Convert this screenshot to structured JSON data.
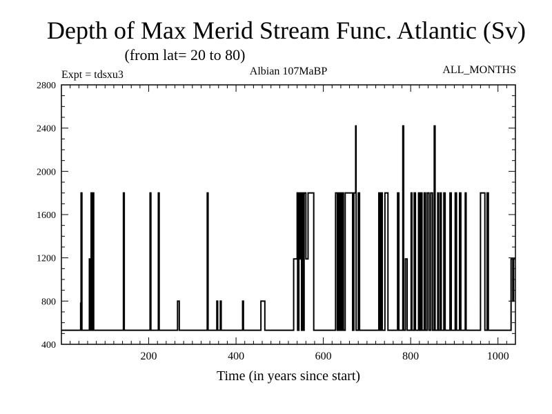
{
  "chart_data": {
    "type": "line",
    "title": "Depth of Max Merid Stream Func. Atlantic (Sv)",
    "subtitle": "(from lat= 20 to 80)",
    "annotations": {
      "left": "Expt = tdsxu3",
      "center": "Albian   107MaBP",
      "right": "ALL_MONTHS"
    },
    "xlabel": "Time (in years since start)",
    "ylabel": "",
    "xlim": [
      0,
      1040
    ],
    "ylim": [
      400,
      2800
    ],
    "xticks": [
      200,
      400,
      600,
      800,
      1000
    ],
    "yticks": [
      400,
      800,
      1200,
      1600,
      2000,
      2400,
      2800
    ],
    "grid": false,
    "series": [
      {
        "values": [
          [
            0,
            530
          ],
          [
            44,
            530
          ],
          [
            44,
            780
          ],
          [
            45,
            780
          ],
          [
            45,
            1800
          ],
          [
            47,
            1800
          ],
          [
            47,
            530
          ],
          [
            64,
            530
          ],
          [
            64,
            1190
          ],
          [
            66,
            1190
          ],
          [
            66,
            530
          ],
          [
            68,
            530
          ],
          [
            68,
            1800
          ],
          [
            70,
            1800
          ],
          [
            70,
            530
          ],
          [
            72,
            530
          ],
          [
            72,
            1800
          ],
          [
            74,
            1800
          ],
          [
            74,
            530
          ],
          [
            142,
            530
          ],
          [
            142,
            1800
          ],
          [
            144,
            1800
          ],
          [
            144,
            530
          ],
          [
            203,
            530
          ],
          [
            203,
            1800
          ],
          [
            205,
            1800
          ],
          [
            205,
            530
          ],
          [
            222,
            530
          ],
          [
            222,
            1800
          ],
          [
            224,
            1800
          ],
          [
            224,
            530
          ],
          [
            266,
            530
          ],
          [
            266,
            800
          ],
          [
            270,
            800
          ],
          [
            270,
            530
          ],
          [
            334,
            530
          ],
          [
            334,
            1800
          ],
          [
            336,
            1800
          ],
          [
            336,
            530
          ],
          [
            356,
            530
          ],
          [
            356,
            800
          ],
          [
            358,
            800
          ],
          [
            358,
            530
          ],
          [
            364,
            530
          ],
          [
            364,
            800
          ],
          [
            366,
            800
          ],
          [
            366,
            530
          ],
          [
            415,
            530
          ],
          [
            415,
            800
          ],
          [
            417,
            800
          ],
          [
            417,
            530
          ],
          [
            457,
            530
          ],
          [
            457,
            800
          ],
          [
            466,
            800
          ],
          [
            466,
            530
          ],
          [
            532,
            530
          ],
          [
            532,
            1190
          ],
          [
            540,
            1190
          ],
          [
            540,
            1800
          ],
          [
            541,
            1800
          ],
          [
            541,
            530
          ],
          [
            544,
            530
          ],
          [
            544,
            1800
          ],
          [
            546,
            1800
          ],
          [
            546,
            1190
          ],
          [
            548,
            1190
          ],
          [
            548,
            1800
          ],
          [
            550,
            1800
          ],
          [
            550,
            530
          ],
          [
            552,
            530
          ],
          [
            552,
            1800
          ],
          [
            554,
            1800
          ],
          [
            554,
            530
          ],
          [
            556,
            530
          ],
          [
            556,
            1800
          ],
          [
            560,
            1800
          ],
          [
            560,
            1190
          ],
          [
            565,
            1190
          ],
          [
            565,
            1800
          ],
          [
            578,
            1800
          ],
          [
            578,
            530
          ],
          [
            628,
            530
          ],
          [
            628,
            1800
          ],
          [
            632,
            1800
          ],
          [
            632,
            530
          ],
          [
            634,
            530
          ],
          [
            634,
            1800
          ],
          [
            636,
            1800
          ],
          [
            636,
            530
          ],
          [
            638,
            530
          ],
          [
            638,
            1800
          ],
          [
            640,
            1800
          ],
          [
            640,
            530
          ],
          [
            643,
            530
          ],
          [
            643,
            1800
          ],
          [
            646,
            1800
          ],
          [
            646,
            530
          ],
          [
            650,
            530
          ],
          [
            650,
            1800
          ],
          [
            667,
            1800
          ],
          [
            667,
            530
          ],
          [
            670,
            530
          ],
          [
            670,
            1800
          ],
          [
            674,
            1800
          ],
          [
            674,
            2420
          ],
          [
            675,
            2420
          ],
          [
            675,
            530
          ],
          [
            680,
            530
          ],
          [
            680,
            1800
          ],
          [
            683,
            1800
          ],
          [
            683,
            530
          ],
          [
            727,
            530
          ],
          [
            727,
            1800
          ],
          [
            730,
            1800
          ],
          [
            730,
            530
          ],
          [
            732,
            530
          ],
          [
            732,
            1800
          ],
          [
            735,
            1800
          ],
          [
            735,
            530
          ],
          [
            741,
            530
          ],
          [
            741,
            1800
          ],
          [
            748,
            1800
          ],
          [
            748,
            530
          ],
          [
            770,
            530
          ],
          [
            770,
            1800
          ],
          [
            773,
            1800
          ],
          [
            773,
            530
          ],
          [
            782,
            530
          ],
          [
            782,
            2420
          ],
          [
            784,
            2420
          ],
          [
            784,
            530
          ],
          [
            788,
            530
          ],
          [
            788,
            1190
          ],
          [
            792,
            1190
          ],
          [
            792,
            530
          ],
          [
            801,
            530
          ],
          [
            801,
            1800
          ],
          [
            803,
            1800
          ],
          [
            803,
            530
          ],
          [
            808,
            530
          ],
          [
            808,
            1800
          ],
          [
            811,
            1800
          ],
          [
            811,
            530
          ],
          [
            818,
            530
          ],
          [
            818,
            1800
          ],
          [
            821,
            1800
          ],
          [
            821,
            530
          ],
          [
            824,
            530
          ],
          [
            824,
            1800
          ],
          [
            826,
            1800
          ],
          [
            826,
            530
          ],
          [
            831,
            530
          ],
          [
            831,
            1800
          ],
          [
            834,
            1800
          ],
          [
            834,
            530
          ],
          [
            838,
            530
          ],
          [
            838,
            1800
          ],
          [
            842,
            1800
          ],
          [
            842,
            530
          ],
          [
            846,
            530
          ],
          [
            846,
            1800
          ],
          [
            850,
            1800
          ],
          [
            850,
            530
          ],
          [
            854,
            530
          ],
          [
            854,
            2420
          ],
          [
            856,
            2420
          ],
          [
            856,
            530
          ],
          [
            862,
            530
          ],
          [
            862,
            1800
          ],
          [
            864,
            1800
          ],
          [
            864,
            530
          ],
          [
            868,
            530
          ],
          [
            868,
            1800
          ],
          [
            870,
            1800
          ],
          [
            870,
            530
          ],
          [
            876,
            530
          ],
          [
            876,
            1800
          ],
          [
            879,
            1800
          ],
          [
            879,
            530
          ],
          [
            890,
            530
          ],
          [
            890,
            1800
          ],
          [
            893,
            1800
          ],
          [
            893,
            530
          ],
          [
            902,
            530
          ],
          [
            902,
            1800
          ],
          [
            905,
            1800
          ],
          [
            905,
            530
          ],
          [
            912,
            530
          ],
          [
            912,
            1800
          ],
          [
            915,
            1800
          ],
          [
            915,
            530
          ],
          [
            925,
            530
          ],
          [
            925,
            1800
          ],
          [
            927,
            1800
          ],
          [
            927,
            530
          ],
          [
            960,
            530
          ],
          [
            960,
            1800
          ],
          [
            970,
            1800
          ],
          [
            970,
            530
          ],
          [
            975,
            530
          ],
          [
            975,
            1800
          ],
          [
            978,
            1800
          ],
          [
            978,
            530
          ],
          [
            1030,
            530
          ],
          [
            1030,
            1190
          ],
          [
            1034,
            1190
          ],
          [
            1034,
            800
          ],
          [
            1036,
            800
          ],
          [
            1036,
            1190
          ],
          [
            1040,
            1190
          ]
        ]
      }
    ]
  }
}
